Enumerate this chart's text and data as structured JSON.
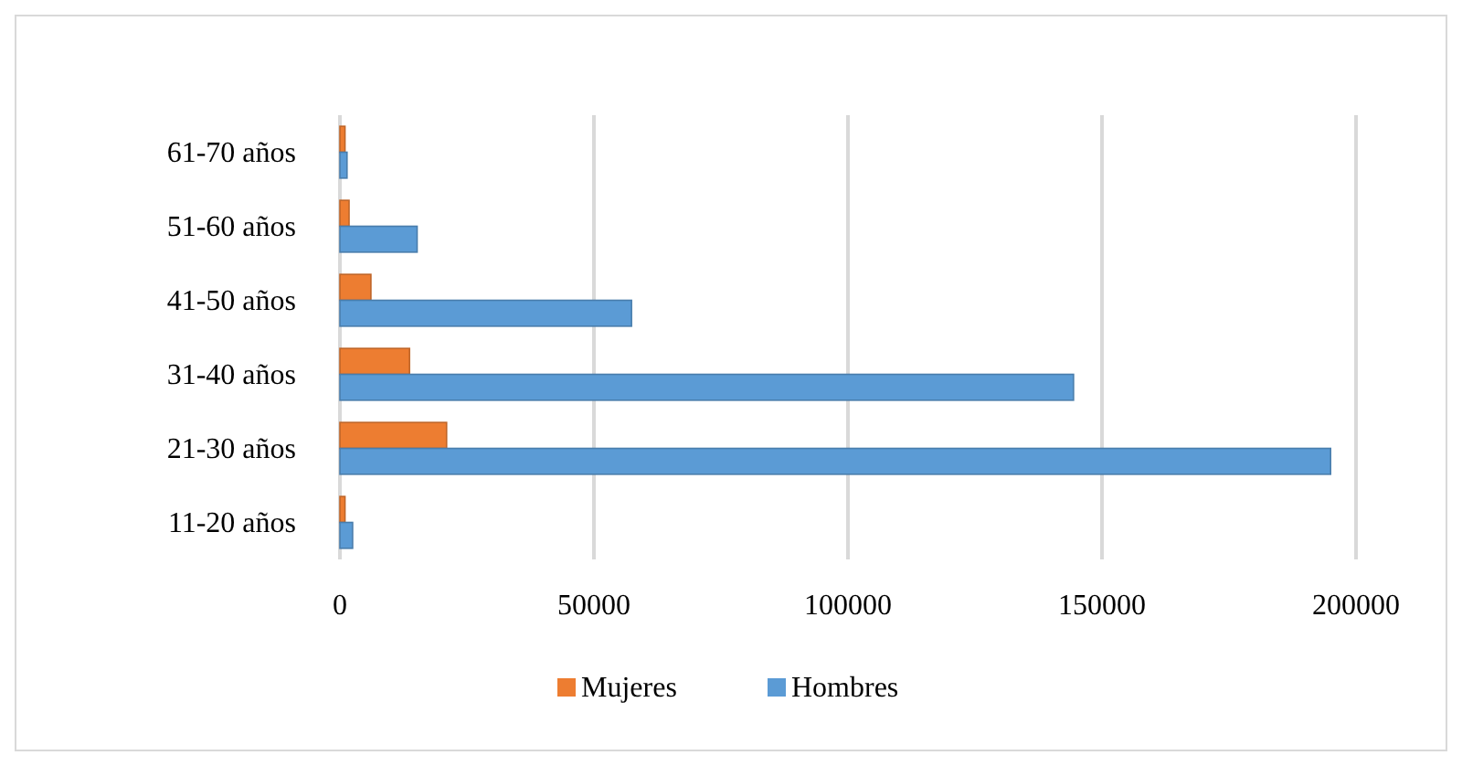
{
  "chart_data": {
    "type": "bar",
    "orientation": "horizontal",
    "categories": [
      "61-70 años",
      "51-60 años",
      "41-50 años",
      "31-40 años",
      "21-30 años",
      "11-20 años"
    ],
    "series": [
      {
        "name": "Mujeres",
        "color": "#ed7d31",
        "values": [
          1000,
          1800,
          6100,
          13700,
          21000,
          1000
        ]
      },
      {
        "name": "Hombres",
        "color": "#5b9bd5",
        "values": [
          1400,
          15200,
          57400,
          144400,
          195000,
          2500
        ]
      }
    ],
    "xlim": [
      0,
      200000
    ],
    "xticks": [
      0,
      50000,
      100000,
      150000,
      200000
    ],
    "grid": "x",
    "legend": "bottom"
  }
}
